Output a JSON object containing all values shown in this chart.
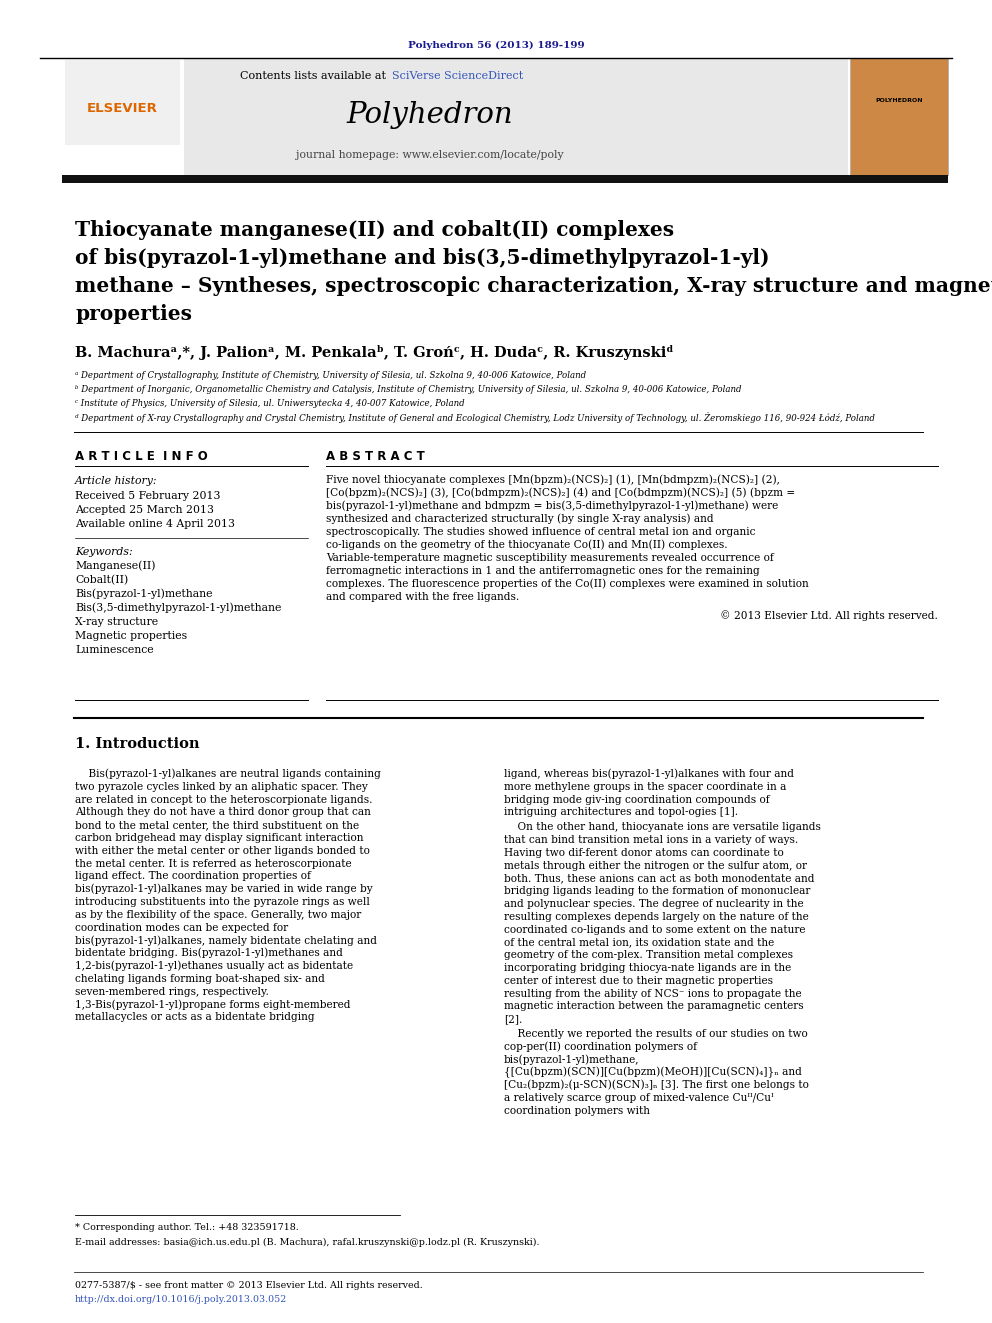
{
  "journal_ref": "Polyhedron 56 (2013) 189-199",
  "journal_name": "Polyhedron",
  "journal_homepage": "journal homepage: www.elsevier.com/locate/poly",
  "contents_line": "Contents lists available at SciVerse ScienceDirect",
  "sciverse_text": "SciVerse ScienceDirect",
  "title_line1": "Thiocyanate manganese(II) and cobalt(II) complexes",
  "title_line2": "of bis(pyrazol-1-yl)methane and bis(3,5-dimethylpyrazol-1-yl)",
  "title_line3": "methane – Syntheses, spectroscopic characterization, X-ray structure and magnetic",
  "title_line4": "properties",
  "authors": "B. Machuraᵃ,*, J. Palionᵃ, M. Penkalaᵇ, T. Grońᶜ, H. Dudaᶜ, R. Kruszynskiᵈ",
  "affil_a": "ᵃ Department of Crystallography, Institute of Chemistry, University of Silesia, ul. Szkolna 9, 40-006 Katowice, Poland",
  "affil_b": "ᵇ Department of Inorganic, Organometallic Chemistry and Catalysis, Institute of Chemistry, University of Silesia, ul. Szkolna 9, 40-006 Katowice, Poland",
  "affil_c": "ᶜ Institute of Physics, University of Silesia, ul. Uniwersytecka 4, 40-007 Katowice, Poland",
  "affil_d": "ᵈ Department of X-ray Crystallography and Crystal Chemistry, Institute of General and Ecological Chemistry, Lodz University of Technology, ul. Żeromskiego 116, 90-924 Łódź, Poland",
  "article_info_header": "A R T I C L E  I N F O",
  "abstract_header": "A B S T R A C T",
  "article_history_label": "Article history:",
  "received": "Received 5 February 2013",
  "accepted": "Accepted 25 March 2013",
  "available": "Available online 4 April 2013",
  "keywords_label": "Keywords:",
  "keywords": [
    "Manganese(II)",
    "Cobalt(II)",
    "Bis(pyrazol-1-yl)methane",
    "Bis(3,5-dimethylpyrazol-1-yl)methane",
    "X-ray structure",
    "Magnetic properties",
    "Luminescence"
  ],
  "abstract_text": "Five novel thiocyanate complexes [Mn(bpzm)₂(NCS)₂] (1), [Mn(bdmpzm)₂(NCS)₂] (2), [Co(bpzm)₂(NCS)₂] (3), [Co(bdmpzm)₂(NCS)₂] (4) and [Co(bdmpzm)(NCS)₂] (5) (bpzm = bis(pyrazol-1-yl)methane and bdmpzm = bis(3,5-dimethylpyrazol-1-yl)methane) were synthesized and characterized structurally (by single X-ray analysis) and spectroscopically. The studies showed influence of central metal ion and organic co-ligands on the geometry of the thiocyanate Co(II) and Mn(II) complexes. Variable-temperature magnetic susceptibility measurements revealed occurrence of ferromagnetic interactions in 1 and the antiferromagnetic ones for the remaining complexes. The fluorescence properties of the Co(II) complexes were examined in solution and compared with the free ligands.",
  "copyright": "© 2013 Elsevier Ltd. All rights reserved.",
  "section1_header": "1. Introduction",
  "intro_col1": "Bis(pyrazol-1-yl)alkanes are neutral ligands containing two pyrazole cycles linked by an aliphatic spacer. They are related in concept to the heteroscorpionate ligands. Although they do not have a third donor group that can bond to the metal center, the third substituent on the carbon bridgehead may display significant interaction with either the metal center or other ligands bonded to the metal center. It is referred as heteroscorpionate ligand effect. The coordination properties of bis(pyrazol-1-yl)alkanes may be varied in wide range by introducing substituents into the pyrazole rings as well as by the flexibility of the space. Generally, two major coordination modes can be expected for bis(pyrazol-1-yl)alkanes, namely bidentate chelating and bidentate bridging. Bis(pyrazol-1-yl)methanes and 1,2-bis(pyrazol-1-yl)ethanes usually act as bidentate chelating ligands forming boat-shaped six- and seven-membered rings, respectively. 1,3-Bis(pyrazol-1-yl)propane forms eight-membered metallacycles or acts as a bidentate bridging",
  "intro_col2_p1": "ligand, whereas bis(pyrazol-1-yl)alkanes with four and more methylene groups in the spacer coordinate in a bridging mode giv-ing coordination compounds of intriguing architectures and topol-ogies [1].",
  "intro_col2_p2": "On the other hand, thiocyanate ions are versatile ligands that can bind transition metal ions in a variety of ways. Having two dif-ferent donor atoms can coordinate to metals through either the nitrogen or the sulfur atom, or both. Thus, these anions can act as both monodentate and bridging ligands leading to the formation of mononuclear and polynuclear species. The degree of nuclearity in the resulting complexes depends largely on the nature of the coordinated co-ligands and to some extent on the nature of the central metal ion, its oxidation state and the geometry of the com-plex. Transition metal complexes incorporating bridging thiocya-nate ligands are in the center of interest due to their magnetic properties resulting from the ability of NCS⁻ ions to propagate the magnetic interaction between the paramagnetic centers [2].",
  "intro_col2_p3": "Recently we reported the results of our studies on two cop-per(II) coordination polymers of bis(pyrazol-1-yl)methane, {[Cu(bpzm)(SCN)][Cu(bpzm)(MeOH)][Cu(SCN)₄]}ₙ and [Cu₂(bpzm)₂(μ-SCN)(SCN)₃]ₙ [3]. The first one belongs to a relatively scarce group of mixed-valence Cuᴵᴵ/Cuᴵ coordination polymers with",
  "footnote1": "* Corresponding author. Tel.: +48 323591718.",
  "footnote2": "E-mail addresses: basia@ich.us.edu.pl (B. Machura), rafal.kruszynski@p.lodz.pl (R. Kruszynski).",
  "footer1": "0277-5387/$ - see front matter © 2013 Elsevier Ltd. All rights reserved.",
  "footer2": "http://dx.doi.org/10.1016/j.poly.2013.03.052",
  "bg_color": "#ffffff",
  "header_gray": "#e8e8e8",
  "dark_bar": "#111111",
  "dark_blue": "#1a1a8f",
  "link_blue": "#3355bb",
  "elsevier_orange": "#dd6600",
  "cover_bg": "#cc8844"
}
